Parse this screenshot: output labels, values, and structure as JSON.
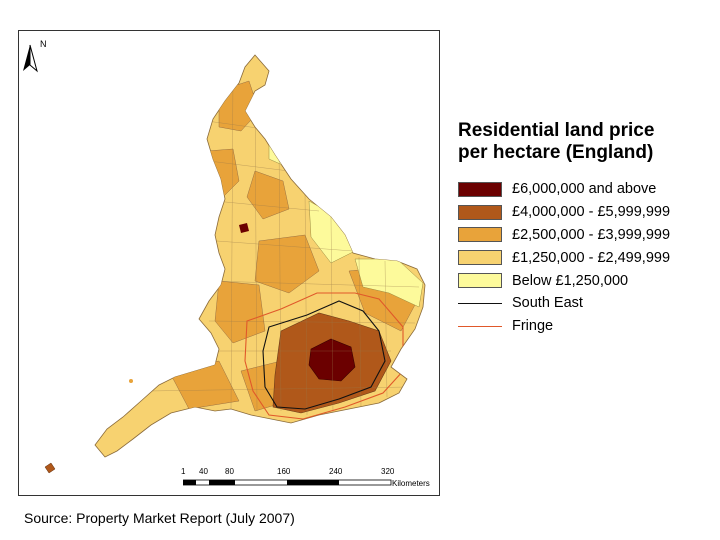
{
  "map": {
    "north_label": "N",
    "scale_ticks": [
      "1",
      "40",
      "80",
      "160",
      "240",
      "320"
    ],
    "scale_unit": "Kilometers"
  },
  "legend": {
    "title_line1": "Residential land price",
    "title_line2": "per hectare (England)",
    "items": [
      {
        "label": "£6,000,000 and above",
        "color": "#6b0000"
      },
      {
        "label": "£4,000,000 - £5,999,999",
        "color": "#b0581a"
      },
      {
        "label": "£2,500,000 - £3,999,999",
        "color": "#e8a33a"
      },
      {
        "label": "£1,250,000 - £2,499,999",
        "color": "#f7d270"
      },
      {
        "label": "Below £1,250,000",
        "color": "#fdfa9b"
      }
    ],
    "lines": [
      {
        "label": "South East",
        "color": "#111111"
      },
      {
        "label": "Fringe",
        "color": "#e0582a"
      }
    ]
  },
  "source": "Source: Property Market Report (July 2007)"
}
